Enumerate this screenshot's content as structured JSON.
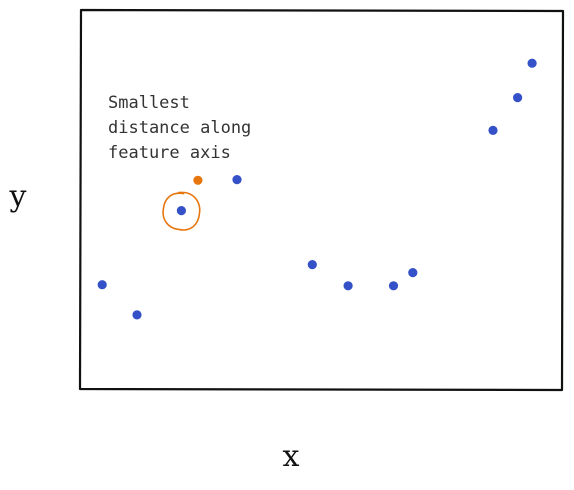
{
  "chart_data": {
    "type": "scatter",
    "title": "",
    "xlabel": "x",
    "ylabel": "y",
    "grid": false,
    "xlim": [
      0,
      100
    ],
    "ylim": [
      0,
      100
    ],
    "series": [
      {
        "color": "#3451c7",
        "points": [
          {
            "x": 4.6,
            "y": 27.6
          },
          {
            "x": 11.8,
            "y": 19.6
          },
          {
            "x": 21.0,
            "y": 47.2
          },
          {
            "x": 32.5,
            "y": 55.4
          },
          {
            "x": 48.1,
            "y": 32.9
          },
          {
            "x": 55.5,
            "y": 27.3
          },
          {
            "x": 64.9,
            "y": 27.3
          },
          {
            "x": 68.9,
            "y": 30.8
          },
          {
            "x": 85.5,
            "y": 68.4
          },
          {
            "x": 90.6,
            "y": 77.1
          },
          {
            "x": 93.6,
            "y": 86.2
          }
        ]
      },
      {
        "color": "#e8760e",
        "points": [
          {
            "x": 24.4,
            "y": 55.2
          }
        ]
      }
    ],
    "highlight": {
      "x": 21.0,
      "y": 47.2,
      "color": "#e8760e"
    },
    "annotation": {
      "lines": [
        "Smallest",
        "distance along",
        "feature axis"
      ]
    }
  }
}
